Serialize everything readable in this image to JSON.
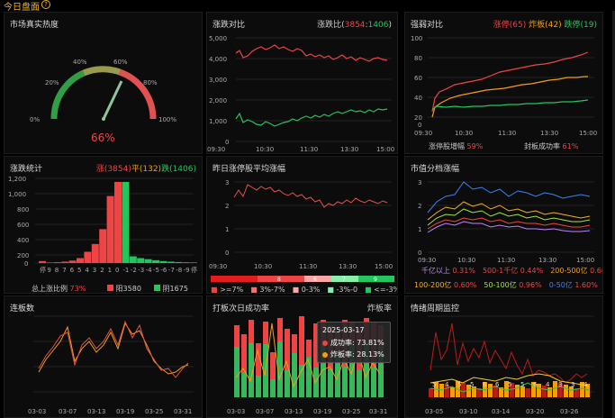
{
  "header": {
    "title": "今日盘面",
    "help_icon": "?"
  },
  "heat": {
    "title": "市场真实热度",
    "value": "66%",
    "needle_fraction": 0.66,
    "ticks": [
      "0%",
      "20%",
      "40%",
      "60%",
      "80%",
      "100%"
    ]
  },
  "updown": {
    "title": "涨跌对比",
    "ratio_prefix": "涨跌比(",
    "up": "3854",
    "sep": ":",
    "down": "1406",
    "ratio_suffix": ")",
    "y_ticks": [
      "5,000",
      "4,000",
      "3,000",
      "2,000",
      "1,000",
      "0"
    ],
    "x_ticks": [
      "09:30",
      "10:30",
      "11:30",
      "13:30",
      "15:00"
    ]
  },
  "strength": {
    "title": "强弱对比",
    "limit_up": "涨停(65)",
    "broken": "炸板(42)",
    "limit_down": "跌停(19)",
    "y_ticks": [
      "100",
      "80",
      "60",
      "40",
      "20",
      "0"
    ],
    "x_ticks": [
      "09:30",
      "10:30",
      "11:30",
      "13:30",
      "15:00"
    ],
    "increase_label": "涨停股增幅",
    "increase_value": "59%",
    "seal_label": "封板成功率",
    "seal_value": "61%"
  },
  "dist": {
    "title": "涨跌统计",
    "up_label": "涨(3854)",
    "flat_label": "平(132)",
    "down_label": "跌(1406)",
    "y_ticks": [
      "1,200",
      "1,000",
      "800",
      "600",
      "400",
      "200",
      "0"
    ],
    "categories": [
      "停",
      "9",
      "8",
      "7",
      "6",
      "5",
      "4",
      "3",
      "2",
      "1",
      "0",
      "-1",
      "-2",
      "-3",
      "-4",
      "-5",
      "-6",
      "-7",
      "-8",
      "-9",
      "停"
    ],
    "values": [
      28,
      8,
      12,
      20,
      35,
      70,
      160,
      270,
      480,
      950,
      1150,
      1150,
      95,
      70,
      55,
      40,
      28,
      20,
      14,
      10,
      8
    ],
    "ratio_label": "总上涨比例",
    "ratio_value": "73%",
    "up_legend": "阳3580",
    "down_legend": "阴1675"
  },
  "avg": {
    "title": "昨日涨停股平均涨幅",
    "y_ticks": [
      "3",
      "2",
      "1",
      "0"
    ],
    "x_ticks": [
      "09:30",
      "10:30",
      "11:30",
      "13:30",
      "15:00"
    ],
    "bar_labels": [
      "8",
      "6",
      "7",
      "9"
    ],
    "legend": [
      ">=7%",
      "3%-7%",
      "0-3%",
      "-3%-0",
      "<=-3%"
    ]
  },
  "mcap": {
    "title": "市值分档涨幅",
    "y_ticks": [
      "3",
      "2",
      "1",
      "0"
    ],
    "x_ticks": [
      "09:30",
      "10:30",
      "11:30",
      "13:30",
      "15:00"
    ],
    "rows": [
      [
        {
          "label": "千亿以上",
          "value": "0.31%"
        },
        {
          "label": "500-1千亿",
          "value": "0.44%"
        },
        {
          "label": "200-500亿",
          "value": "0.60%"
        }
      ],
      [
        {
          "label": "100-200亿",
          "value": "0.60%"
        },
        {
          "label": "50-100亿",
          "value": "0.96%"
        },
        {
          "label": "0-50亿",
          "value": "1.60%"
        }
      ]
    ]
  },
  "streak": {
    "title": "连板数",
    "y_ticks": [],
    "x_ticks": [
      "03-03",
      "03-07",
      "03-13",
      "03-19",
      "03-25",
      "03-31"
    ]
  },
  "next": {
    "title": "打板次日成功率",
    "right": "炸板率",
    "x_ticks": [
      "03-03",
      "03-07",
      "03-13",
      "03-19",
      "03-25",
      "03-31"
    ],
    "tooltip_date": "2025-03-17",
    "tooltip_success_label": "成功率:",
    "tooltip_success": "73.81%",
    "tooltip_broken_label": "炸板率:",
    "tooltip_broken": "28.13%"
  },
  "cycle": {
    "title": "情绪周期监控",
    "x_ticks": [
      "03-05",
      "03-10",
      "03-14",
      "03-20",
      "03-26"
    ],
    "labels": [
      "5",
      "4",
      "5",
      "5",
      "6",
      "6",
      "5",
      "5",
      "6",
      "4",
      "3",
      "3",
      "4"
    ]
  },
  "colors": {
    "up": "#ef4444",
    "down": "#22c55e",
    "flat": "#f59e0b",
    "accent": "#f5b21a"
  },
  "chart_data": [
    {
      "type": "bar",
      "title": "涨跌统计",
      "categories": [
        "停",
        "9",
        "8",
        "7",
        "6",
        "5",
        "4",
        "3",
        "2",
        "1",
        "0",
        "-1",
        "-2",
        "-3",
        "-4",
        "-5",
        "-6",
        "-7",
        "-8",
        "-9",
        "停"
      ],
      "values": [
        28,
        8,
        12,
        20,
        35,
        70,
        160,
        270,
        480,
        950,
        1150,
        1150,
        95,
        70,
        55,
        40,
        28,
        20,
        14,
        10,
        8
      ],
      "ylim": [
        0,
        1200
      ]
    },
    {
      "type": "line",
      "title": "涨跌对比",
      "series": [
        {
          "values": [
            4100,
            4300,
            4200,
            4000,
            3900,
            3800
          ]
        },
        {
          "values": [
            1100,
            1300,
            1200,
            1400,
            1500,
            1450
          ]
        }
      ],
      "ylim": [
        0,
        5000
      ]
    }
  ]
}
